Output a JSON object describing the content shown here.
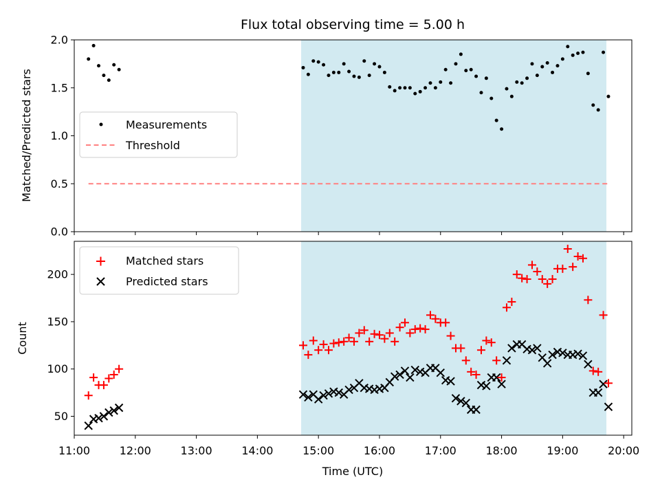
{
  "chart_data": [
    {
      "type": "scatter",
      "title": "Flux total observing time = 5.00 h",
      "ylabel": "Matched/Predicted stars",
      "ylim": [
        0,
        2
      ],
      "yticks": [
        0,
        0.5,
        1,
        1.5,
        2
      ],
      "ytick_labels": [
        "0.0",
        "0.5",
        "1.0",
        "1.5",
        "2.0"
      ],
      "xlim": [
        "11:00",
        "20:08"
      ],
      "shaded_interval": [
        "14:43",
        "19:43"
      ],
      "shade_color": "#add8e6",
      "legend_location": "center-left",
      "series": [
        {
          "name": "Measurements",
          "marker": "dot",
          "color": "#000000",
          "x": [
            "11:14",
            "11:19",
            "11:24",
            "11:29",
            "11:34",
            "11:39",
            "11:44",
            "14:45",
            "14:50",
            "14:55",
            "15:00",
            "15:05",
            "15:10",
            "15:15",
            "15:20",
            "15:25",
            "15:30",
            "15:35",
            "15:40",
            "15:45",
            "15:50",
            "15:55",
            "16:00",
            "16:05",
            "16:10",
            "16:15",
            "16:20",
            "16:25",
            "16:30",
            "16:35",
            "16:40",
            "16:45",
            "16:50",
            "16:55",
            "17:00",
            "17:05",
            "17:10",
            "17:15",
            "17:20",
            "17:25",
            "17:30",
            "17:35",
            "17:40",
            "17:45",
            "17:50",
            "17:55",
            "18:00",
            "18:05",
            "18:10",
            "18:15",
            "18:20",
            "18:25",
            "18:30",
            "18:35",
            "18:40",
            "18:45",
            "18:50",
            "18:55",
            "19:00",
            "19:05",
            "19:10",
            "19:15",
            "19:20",
            "19:25",
            "19:30",
            "19:35",
            "19:40",
            "19:45"
          ],
          "y": [
            1.8,
            1.94,
            1.73,
            1.63,
            1.58,
            1.74,
            1.69,
            1.71,
            1.64,
            1.78,
            1.77,
            1.74,
            1.63,
            1.66,
            1.66,
            1.75,
            1.67,
            1.62,
            1.61,
            1.78,
            1.63,
            1.75,
            1.72,
            1.66,
            1.51,
            1.47,
            1.5,
            1.5,
            1.5,
            1.44,
            1.46,
            1.5,
            1.55,
            1.5,
            1.56,
            1.69,
            1.55,
            1.75,
            1.85,
            1.68,
            1.69,
            1.62,
            1.45,
            1.6,
            1.39,
            1.16,
            1.07,
            1.49,
            1.41,
            1.56,
            1.55,
            1.6,
            1.75,
            1.63,
            1.72,
            1.76,
            1.66,
            1.73,
            1.8,
            1.93,
            1.84,
            1.86,
            1.87,
            1.65,
            1.32,
            1.27,
            1.87,
            1.41
          ]
        },
        {
          "name": "Threshold",
          "marker": "dashed-line",
          "color": "#ff8080",
          "x": [
            "11:14",
            "19:45"
          ],
          "y": [
            0.5,
            0.5
          ]
        }
      ]
    },
    {
      "type": "scatter",
      "xlabel": "Time (UTC)",
      "ylabel": "Count",
      "ylim": [
        30,
        235
      ],
      "yticks": [
        50,
        100,
        150,
        200
      ],
      "ytick_labels": [
        "50",
        "100",
        "150",
        "200"
      ],
      "xlim": [
        "11:00",
        "20:08"
      ],
      "xticks": [
        "11:00",
        "12:00",
        "13:00",
        "14:00",
        "15:00",
        "16:00",
        "17:00",
        "18:00",
        "19:00",
        "20:00"
      ],
      "xtick_labels": [
        "11:00",
        "12:00",
        "13:00",
        "14:00",
        "15:00",
        "16:00",
        "17:00",
        "18:00",
        "19:00",
        "20:00"
      ],
      "shaded_interval": [
        "14:43",
        "19:43"
      ],
      "shade_color": "#add8e6",
      "legend_location": "top-left",
      "series": [
        {
          "name": "Matched stars",
          "marker": "plus",
          "color": "#ff0000",
          "x": [
            "11:14",
            "11:19",
            "11:24",
            "11:29",
            "11:34",
            "11:39",
            "11:44",
            "14:45",
            "14:50",
            "14:55",
            "15:00",
            "15:05",
            "15:10",
            "15:15",
            "15:20",
            "15:25",
            "15:30",
            "15:35",
            "15:40",
            "15:45",
            "15:50",
            "15:55",
            "16:00",
            "16:05",
            "16:10",
            "16:15",
            "16:20",
            "16:25",
            "16:30",
            "16:35",
            "16:40",
            "16:45",
            "16:50",
            "16:55",
            "17:00",
            "17:05",
            "17:10",
            "17:15",
            "17:20",
            "17:25",
            "17:30",
            "17:35",
            "17:40",
            "17:45",
            "17:50",
            "17:55",
            "18:00",
            "18:05",
            "18:10",
            "18:15",
            "18:20",
            "18:25",
            "18:30",
            "18:35",
            "18:40",
            "18:45",
            "18:50",
            "18:55",
            "19:00",
            "19:05",
            "19:10",
            "19:15",
            "19:20",
            "19:25",
            "19:30",
            "19:35",
            "19:40",
            "19:45"
          ],
          "y": [
            72,
            91,
            83,
            83,
            90,
            94,
            100,
            125,
            115,
            130,
            120,
            126,
            120,
            127,
            128,
            129,
            133,
            129,
            138,
            141,
            129,
            137,
            136,
            132,
            138,
            129,
            144,
            149,
            138,
            142,
            143,
            142,
            157,
            153,
            149,
            149,
            135,
            122,
            122,
            109,
            97,
            94,
            120,
            130,
            128,
            109,
            91,
            165,
            171,
            200,
            196,
            195,
            210,
            203,
            195,
            190,
            195,
            206,
            206,
            227,
            208,
            219,
            217,
            173,
            98,
            97,
            157,
            85
          ]
        },
        {
          "name": "Predicted stars",
          "marker": "cross",
          "color": "#000000",
          "x": [
            "11:14",
            "11:19",
            "11:24",
            "11:29",
            "11:34",
            "11:39",
            "11:44",
            "14:45",
            "14:50",
            "14:55",
            "15:00",
            "15:05",
            "15:10",
            "15:15",
            "15:20",
            "15:25",
            "15:30",
            "15:35",
            "15:40",
            "15:45",
            "15:50",
            "15:55",
            "16:00",
            "16:05",
            "16:10",
            "16:15",
            "16:20",
            "16:25",
            "16:30",
            "16:35",
            "16:40",
            "16:45",
            "16:50",
            "16:55",
            "17:00",
            "17:05",
            "17:10",
            "17:15",
            "17:20",
            "17:25",
            "17:30",
            "17:35",
            "17:40",
            "17:45",
            "17:50",
            "17:55",
            "18:00",
            "18:05",
            "18:10",
            "18:15",
            "18:20",
            "18:25",
            "18:30",
            "18:35",
            "18:40",
            "18:45",
            "18:50",
            "18:55",
            "19:00",
            "19:05",
            "19:10",
            "19:15",
            "19:20",
            "19:25",
            "19:30",
            "19:35",
            "19:40",
            "19:45"
          ],
          "y": [
            40,
            47,
            48,
            50,
            54,
            56,
            59,
            73,
            70,
            73,
            68,
            72,
            74,
            76,
            75,
            73,
            78,
            80,
            85,
            80,
            79,
            78,
            79,
            80,
            86,
            92,
            94,
            98,
            91,
            99,
            97,
            96,
            101,
            101,
            96,
            88,
            87,
            69,
            66,
            64,
            57,
            57,
            83,
            82,
            91,
            91,
            84,
            109,
            122,
            126,
            126,
            121,
            120,
            122,
            112,
            106,
            115,
            118,
            117,
            115,
            115,
            116,
            114,
            105,
            75,
            75,
            84,
            60
          ]
        }
      ]
    }
  ]
}
